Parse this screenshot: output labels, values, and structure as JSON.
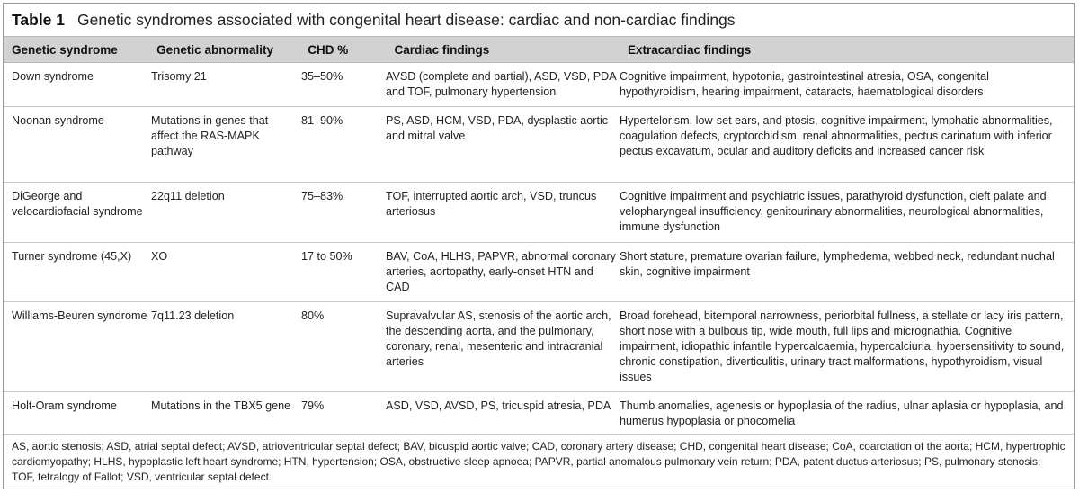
{
  "table": {
    "label": "Table 1",
    "title": "Genetic syndromes associated with congenital heart disease: cardiac and non-cardiac findings",
    "headers": [
      "Genetic syndrome",
      "Genetic abnormality",
      "CHD %",
      "Cardiac findings",
      "Extracardiac findings"
    ],
    "rows": [
      [
        "Down syndrome",
        "Trisomy 21",
        "35–50%",
        "AVSD (complete and partial), ASD, VSD, PDA and TOF, pulmonary hypertension",
        "Cognitive impairment, hypotonia, gastrointestinal atresia, OSA, congenital hypothyroidism, hearing impairment, cataracts, haematological disorders"
      ],
      [
        "Noonan syndrome",
        "Mutations in genes that affect the RAS-MAPK pathway",
        "81–90%",
        "PS, ASD, HCM, VSD, PDA, dysplastic aortic and mitral valve",
        "Hypertelorism, low-set ears, and ptosis, cognitive impairment, lymphatic abnormalities, coagulation defects, cryptorchidism, renal abnormalities, pectus carinatum with inferior pectus excavatum, ocular and auditory deficits and increased cancer risk"
      ],
      [
        "DiGeorge and velocardiofacial syndrome",
        "22q11 deletion",
        "75–83%",
        "TOF, interrupted aortic arch, VSD, truncus arteriosus",
        "Cognitive impairment and psychiatric issues, parathyroid dysfunction, cleft palate and velopharyngeal insufficiency, genitourinary abnormalities, neurological abnormalities, immune dysfunction"
      ],
      [
        "Turner syndrome (45,X)",
        "XO",
        "17 to 50%",
        "BAV, CoA, HLHS, PAPVR, abnormal coronary arteries, aortopathy, early-onset HTN and CAD",
        "Short stature, premature ovarian failure, lymphedema, webbed neck, redundant nuchal skin, cognitive impairment"
      ],
      [
        "Williams-Beuren syndrome",
        "7q11.23 deletion",
        "80%",
        "Supravalvular AS, stenosis of the aortic arch, the descending aorta, and the pulmonary, coronary, renal, mesenteric and intracranial arteries",
        "Broad forehead, bitemporal narrowness, periorbital fullness, a stellate or lacy iris pattern, short nose with a bulbous tip, wide mouth, full lips and micrognathia. Cognitive impairment, idiopathic infantile hypercalcaemia, hypercalciuria, hypersensitivity to sound, chronic constipation, diverticulitis, urinary tract malformations, hypothyroidism, visual issues"
      ],
      [
        "Holt-Oram syndrome",
        "Mutations in the TBX5 gene",
        "79%",
        "ASD, VSD, AVSD, PS, tricuspid atresia, PDA",
        "Thumb anomalies, agenesis or hypoplasia of the radius, ulnar aplasia or hypoplasia, and humerus hypoplasia or phocomelia"
      ]
    ],
    "footnote": "AS, aortic stenosis; ASD, atrial septal defect; AVSD, atrioventricular septal defect; BAV, bicuspid aortic valve; CAD, coronary artery disease; CHD, congenital heart disease; CoA, coarctation of the aorta; HCM, hypertrophic cardiomyopathy; HLHS, hypoplastic left heart syndrome; HTN, hypertension; OSA, obstructive sleep apnoea; PAPVR, partial anomalous pulmonary vein return; PDA, patent ductus arteriosus; PS, pulmonary stenosis; TOF, tetralogy of Fallot; VSD, ventricular septal defect."
  }
}
